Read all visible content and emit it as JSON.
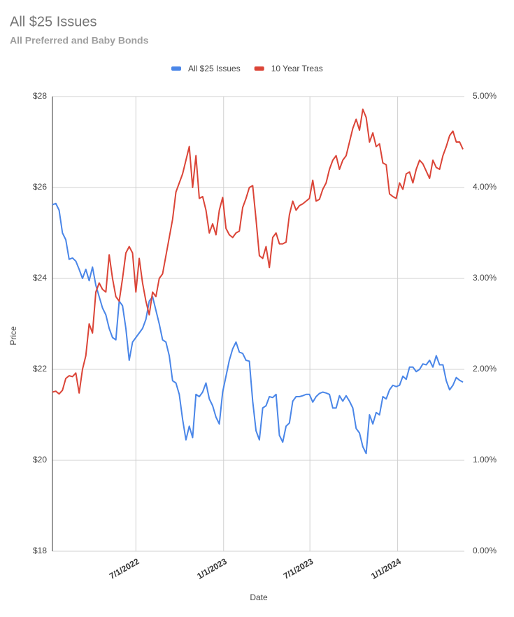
{
  "chart_data": {
    "type": "line",
    "title": "All $25 Issues",
    "subtitle": "All Preferred and Baby Bonds",
    "x_label": "Date",
    "y_label": "Price",
    "legend": "top",
    "grid": true,
    "x": [
      "2022-01-07",
      "2022-01-14",
      "2022-01-21",
      "2022-01-28",
      "2022-02-04",
      "2022-02-11",
      "2022-02-18",
      "2022-02-25",
      "2022-03-04",
      "2022-03-11",
      "2022-03-18",
      "2022-03-25",
      "2022-04-01",
      "2022-04-08",
      "2022-04-15",
      "2022-04-22",
      "2022-04-29",
      "2022-05-06",
      "2022-05-13",
      "2022-05-20",
      "2022-05-27",
      "2022-06-03",
      "2022-06-10",
      "2022-06-17",
      "2022-06-24",
      "2022-07-01",
      "2022-07-08",
      "2022-07-15",
      "2022-07-22",
      "2022-07-29",
      "2022-08-05",
      "2022-08-12",
      "2022-08-19",
      "2022-08-26",
      "2022-09-02",
      "2022-09-09",
      "2022-09-16",
      "2022-09-23",
      "2022-09-30",
      "2022-10-07",
      "2022-10-14",
      "2022-10-21",
      "2022-10-28",
      "2022-11-04",
      "2022-11-11",
      "2022-11-18",
      "2022-11-25",
      "2022-12-02",
      "2022-12-09",
      "2022-12-16",
      "2022-12-23",
      "2022-12-30",
      "2023-01-06",
      "2023-01-13",
      "2023-01-20",
      "2023-01-27",
      "2023-02-03",
      "2023-02-10",
      "2023-02-17",
      "2023-02-24",
      "2023-03-03",
      "2023-03-10",
      "2023-03-17",
      "2023-03-24",
      "2023-03-31",
      "2023-04-07",
      "2023-04-14",
      "2023-04-21",
      "2023-04-28",
      "2023-05-05",
      "2023-05-12",
      "2023-05-19",
      "2023-05-26",
      "2023-06-02",
      "2023-06-09",
      "2023-06-16",
      "2023-06-23",
      "2023-06-30",
      "2023-07-07",
      "2023-07-14",
      "2023-07-21",
      "2023-07-28",
      "2023-08-04",
      "2023-08-11",
      "2023-08-18",
      "2023-08-25",
      "2023-09-01",
      "2023-09-08",
      "2023-09-15",
      "2023-09-22",
      "2023-09-29",
      "2023-10-06",
      "2023-10-13",
      "2023-10-20",
      "2023-10-27",
      "2023-11-03",
      "2023-11-10",
      "2023-11-17",
      "2023-11-24",
      "2023-12-01",
      "2023-12-08",
      "2023-12-15",
      "2023-12-22",
      "2023-12-29",
      "2024-01-05",
      "2024-01-12",
      "2024-01-19",
      "2024-01-26",
      "2024-02-02",
      "2024-02-09",
      "2024-02-16",
      "2024-02-23",
      "2024-03-01",
      "2024-03-08",
      "2024-03-15",
      "2024-03-22",
      "2024-03-29",
      "2024-04-05",
      "2024-04-12",
      "2024-04-19",
      "2024-04-26",
      "2024-05-03",
      "2024-05-10",
      "2024-05-17"
    ],
    "xlim": [
      "2022-01-07",
      "2024-05-17"
    ],
    "xticks": [
      {
        "value": "2022-07-01",
        "label": "7/1/2022"
      },
      {
        "value": "2023-01-01",
        "label": "1/1/2023"
      },
      {
        "value": "2023-07-01",
        "label": "7/1/2023"
      },
      {
        "value": "2024-01-01",
        "label": "1/1/2024"
      }
    ],
    "ylim": [
      18,
      28
    ],
    "yticks": [
      {
        "value": 18,
        "label": "$18"
      },
      {
        "value": 20,
        "label": "$20"
      },
      {
        "value": 22,
        "label": "$22"
      },
      {
        "value": 24,
        "label": "$24"
      },
      {
        "value": 26,
        "label": "$26"
      },
      {
        "value": 28,
        "label": "$28"
      }
    ],
    "y2lim": [
      0,
      5
    ],
    "y2ticks": [
      {
        "value": 0,
        "label": "0.00%"
      },
      {
        "value": 1,
        "label": "1.00%"
      },
      {
        "value": 2,
        "label": "2.00%"
      },
      {
        "value": 3,
        "label": "3.00%"
      },
      {
        "value": 4,
        "label": "4.00%"
      },
      {
        "value": 5,
        "label": "5.00%"
      }
    ],
    "series": [
      {
        "name": "All $25 Issues",
        "color": "#4a86e8",
        "values": [
          25.62,
          25.65,
          25.5,
          25.0,
          24.85,
          24.42,
          24.45,
          24.38,
          24.2,
          24.0,
          24.2,
          23.95,
          24.25,
          23.85,
          23.6,
          23.35,
          23.2,
          22.9,
          22.7,
          22.65,
          23.5,
          23.4,
          22.9,
          22.2,
          22.6,
          22.7,
          22.8,
          22.9,
          23.1,
          23.5,
          23.6,
          23.3,
          23.0,
          22.65,
          22.6,
          22.3,
          21.75,
          21.7,
          21.45,
          20.9,
          20.45,
          20.75,
          20.5,
          21.45,
          21.4,
          21.5,
          21.7,
          21.35,
          21.2,
          20.95,
          20.8,
          21.5,
          21.85,
          22.2,
          22.45,
          22.6,
          22.38,
          22.35,
          22.2,
          22.18,
          21.3,
          20.65,
          20.45,
          21.15,
          21.2,
          21.4,
          21.38,
          21.45,
          20.55,
          20.4,
          20.75,
          20.82,
          21.3,
          21.4,
          21.4,
          21.42,
          21.45,
          21.45,
          21.28,
          21.4,
          21.47,
          21.5,
          21.48,
          21.45,
          21.15,
          21.15,
          21.42,
          21.3,
          21.42,
          21.3,
          21.15,
          20.7,
          20.6,
          20.3,
          20.15,
          21.0,
          20.8,
          21.05,
          21.0,
          21.4,
          21.35,
          21.55,
          21.65,
          21.62,
          21.65,
          21.85,
          21.78,
          22.05,
          22.05,
          21.95,
          22.0,
          22.12,
          22.1,
          22.2,
          22.05,
          22.3,
          22.1,
          22.1,
          21.75,
          21.55,
          21.65,
          21.82,
          21.76,
          21.72
        ]
      },
      {
        "name": "10 Year Treas",
        "color": "#db4437",
        "axis": "y2",
        "values": [
          1.75,
          1.76,
          1.73,
          1.77,
          1.9,
          1.93,
          1.92,
          1.96,
          1.74,
          2.0,
          2.15,
          2.5,
          2.4,
          2.85,
          2.95,
          2.88,
          2.85,
          3.26,
          3.0,
          2.8,
          2.75,
          3.0,
          3.28,
          3.35,
          3.28,
          2.85,
          3.22,
          2.95,
          2.75,
          2.6,
          2.85,
          2.8,
          3.0,
          3.05,
          3.25,
          3.45,
          3.65,
          3.95,
          4.05,
          4.15,
          4.3,
          4.45,
          4.0,
          4.35,
          3.88,
          3.9,
          3.75,
          3.5,
          3.6,
          3.48,
          3.75,
          3.89,
          3.55,
          3.48,
          3.45,
          3.5,
          3.52,
          3.78,
          3.88,
          4.0,
          4.02,
          3.65,
          3.25,
          3.22,
          3.35,
          3.12,
          3.45,
          3.5,
          3.38,
          3.38,
          3.4,
          3.7,
          3.85,
          3.75,
          3.8,
          3.82,
          3.85,
          3.88,
          4.08,
          3.85,
          3.87,
          3.98,
          4.05,
          4.2,
          4.3,
          4.35,
          4.2,
          4.3,
          4.35,
          4.5,
          4.65,
          4.75,
          4.63,
          4.86,
          4.77,
          4.5,
          4.6,
          4.45,
          4.48,
          4.27,
          4.25,
          3.93,
          3.9,
          3.88,
          4.05,
          3.98,
          4.15,
          4.17,
          4.05,
          4.2,
          4.3,
          4.26,
          4.18,
          4.1,
          4.3,
          4.22,
          4.2,
          4.35,
          4.45,
          4.57,
          4.62,
          4.5,
          4.5,
          4.42
        ]
      }
    ]
  }
}
